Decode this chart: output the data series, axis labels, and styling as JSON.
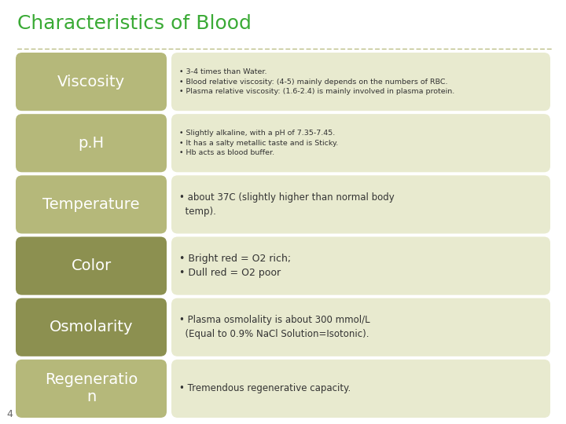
{
  "title": "Characteristics of Blood",
  "title_color": "#3aaa35",
  "title_fontsize": 18,
  "background_color": "#ffffff",
  "slide_number": "4",
  "rows": [
    {
      "label": "Viscosity",
      "label_color": "#ffffff",
      "label_bg": "#b5b87a",
      "desc_bg": "#e8eacf",
      "text": "• 3-4 times than Water.\n• Blood relative viscosity: (4-5) mainly depends on the numbers of RBC.\n• Plasma relative viscosity: (1.6-2.4) is mainly involved in plasma protein.",
      "text_fontsize": 6.8,
      "label_fontsize": 14,
      "label_bold": false
    },
    {
      "label": "p.H",
      "label_color": "#ffffff",
      "label_bg": "#b5b87a",
      "desc_bg": "#e8eacf",
      "text": "• Slightly alkaline, with a pH of 7.35-7.45.\n• It has a salty metallic taste and is Sticky.\n• Hb acts as blood buffer.",
      "text_fontsize": 6.8,
      "label_fontsize": 14,
      "label_bold": false
    },
    {
      "label": "Temperature",
      "label_color": "#ffffff",
      "label_bg": "#b5b87a",
      "desc_bg": "#e8eacf",
      "text": "• about 37C (slightly higher than normal body\n  temp).",
      "text_fontsize": 8.5,
      "label_fontsize": 14,
      "label_bold": false
    },
    {
      "label": "Color",
      "label_color": "#ffffff",
      "label_bg": "#8c9050",
      "desc_bg": "#e8eacf",
      "text": "• Bright red = O2 rich;\n• Dull red = O2 poor",
      "text_fontsize": 9,
      "label_fontsize": 14,
      "label_bold": false
    },
    {
      "label": "Osmolarity",
      "label_color": "#ffffff",
      "label_bg": "#8c9050",
      "desc_bg": "#e8eacf",
      "text": "• Plasma osmolality is about 300 mmol/L\n  (Equal to 0.9% NaCl Solution=Isotonic).",
      "text_fontsize": 8.5,
      "label_fontsize": 14,
      "label_bold": false
    },
    {
      "label": "Regeneratio\nn",
      "label_color": "#ffffff",
      "label_bg": "#b5b87a",
      "desc_bg": "#e8eacf",
      "text": "• Tremendous regenerative capacity.",
      "text_fontsize": 8.5,
      "label_fontsize": 14,
      "label_bold": false
    }
  ],
  "dashed_line_color": "#b5b87a"
}
